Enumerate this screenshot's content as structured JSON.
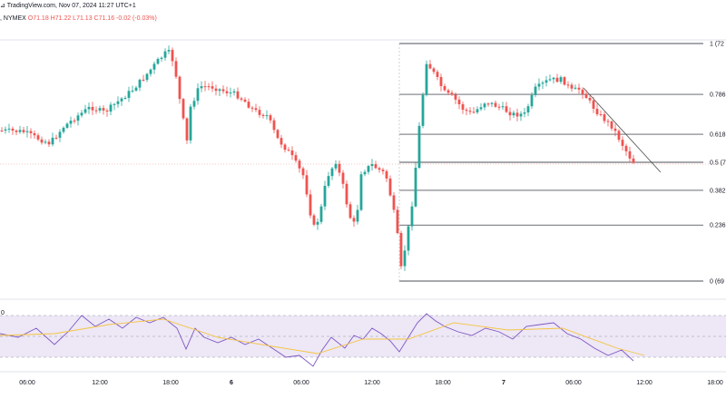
{
  "header": {
    "line1": "TradingView.com, Nov 07, 2024 11:27 UTC+1",
    "symbol_suffix": ", NYMEX",
    "ohlc": "O71.18 H71.22 L71.13 C71.16 -0.02 (-0.03%)"
  },
  "colors": {
    "up": "#26a69a",
    "down": "#ef5350",
    "fib_line": "#131722",
    "rsi_line": "#7e57c2",
    "rsi_ma": "#f5c542",
    "rsi_band": "#ede7f6",
    "price_line": "#f28b82"
  },
  "icons": {
    "logo": "tradingview-logo-icon"
  },
  "fib_levels": [
    {
      "ratio": 1,
      "label": "1 (72"
    },
    {
      "ratio": 0.786,
      "label": "0.786"
    },
    {
      "ratio": 0.618,
      "label": "0.618"
    },
    {
      "ratio": 0.5,
      "label": "0.5 (7"
    },
    {
      "ratio": 0.382,
      "label": "0.382"
    },
    {
      "ratio": 0.236,
      "label": "0.236"
    },
    {
      "ratio": 0,
      "label": "0 (69"
    }
  ],
  "time_axis": [
    {
      "label": "06:00",
      "bold": false
    },
    {
      "label": "12:00",
      "bold": false
    },
    {
      "label": "18:00",
      "bold": false
    },
    {
      "label": "6",
      "bold": true
    },
    {
      "label": "06:00",
      "bold": false
    },
    {
      "label": "12:00",
      "bold": false
    },
    {
      "label": "18:00",
      "bold": false
    },
    {
      "label": "7",
      "bold": true
    },
    {
      "label": "06:00",
      "bold": false
    },
    {
      "label": "12:00",
      "bold": false
    },
    {
      "label": "18:00",
      "bold": false
    }
  ],
  "rsi": {
    "label": "0"
  }
}
